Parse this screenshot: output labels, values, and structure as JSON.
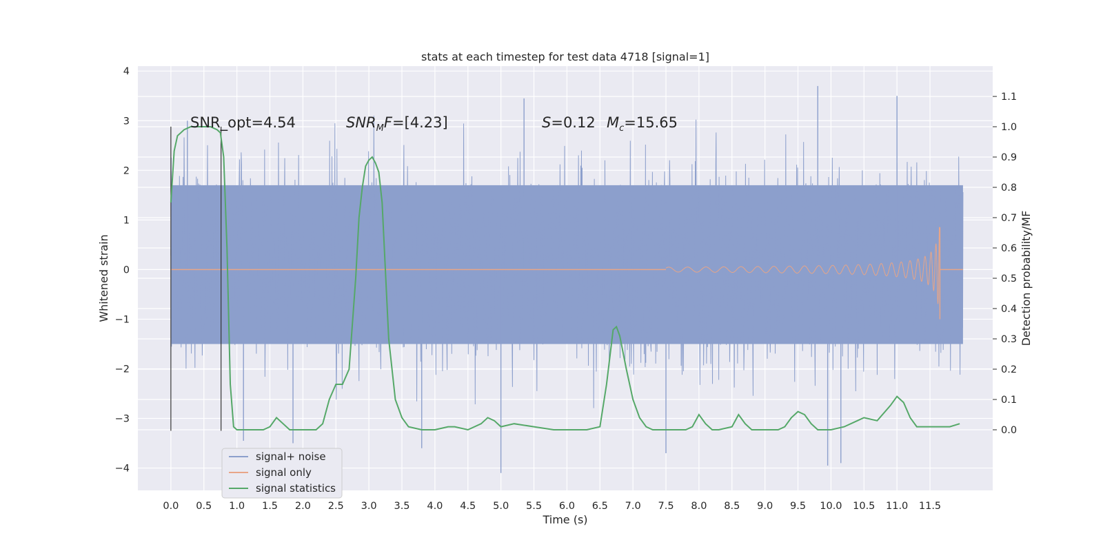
{
  "chart_data": {
    "type": "line",
    "title": "stats at each timestep for test data 4718 [signal=1]",
    "xlabel": "Time (s)",
    "ylabel": "Whitened strain",
    "ylabel_right": "Detection probability/MF",
    "xlim": [
      -0.5,
      12.45
    ],
    "ylim": [
      -4.45,
      4.1
    ],
    "ylim_right": [
      -0.2,
      1.2
    ],
    "x_ticks": [
      0.0,
      0.5,
      1.0,
      1.5,
      2.0,
      2.5,
      3.0,
      3.5,
      4.0,
      4.5,
      5.0,
      5.5,
      6.0,
      6.5,
      7.0,
      7.5,
      8.0,
      8.5,
      9.0,
      9.5,
      10.0,
      10.5,
      11.0,
      11.5
    ],
    "x_tick_labels": [
      "0.0",
      "0.5",
      "1.0",
      "1.5",
      "2.0",
      "2.5",
      "3.0",
      "3.5",
      "4.0",
      "4.5",
      "5.0",
      "5.5",
      "6.0",
      "6.5",
      "7.0",
      "7.5",
      "8.0",
      "8.5",
      "9.0",
      "9.5",
      "10.0",
      "10.5",
      "11.0",
      "11.5"
    ],
    "y_ticks": [
      -4,
      -3,
      -2,
      -1,
      0,
      1,
      2,
      3,
      4
    ],
    "y_tick_labels": [
      "−4",
      "−3",
      "−2",
      "−1",
      "0",
      "1",
      "2",
      "3",
      "4"
    ],
    "y_ticks_right": [
      0.0,
      0.1,
      0.2,
      0.3,
      0.4,
      0.5,
      0.6,
      0.7,
      0.8,
      0.9,
      1.0,
      1.1
    ],
    "y_tick_labels_right": [
      "0.0",
      "0.1",
      "0.2",
      "0.3",
      "0.4",
      "0.5",
      "0.6",
      "0.7",
      "0.8",
      "0.9",
      "1.0",
      "1.1"
    ],
    "grid": true,
    "legend_position": "lower-left",
    "legend": [
      "signal+ noise",
      "signal only",
      "signal statistics"
    ],
    "annotations": {
      "snr_opt": "SNR_opt=4.54",
      "snr_mf": "SNR_MF=[4.23]",
      "s_label": "S=0.12",
      "mc_label": "M_c=15.65"
    },
    "markers_x": [
      0.0,
      0.76
    ],
    "series": [
      {
        "name": "signal+ noise",
        "color": "#8c9fcc",
        "band_x": [
          0,
          12
        ],
        "band_core": [
          -1.5,
          1.7
        ],
        "band_envelope": [
          -2.9,
          3.1
        ],
        "extreme_spikes": [
          {
            "x": 0.25,
            "y": 3.0
          },
          {
            "x": 1.1,
            "y": -3.45
          },
          {
            "x": 1.85,
            "y": -3.5
          },
          {
            "x": 3.8,
            "y": -3.6
          },
          {
            "x": 5.0,
            "y": -4.1
          },
          {
            "x": 5.35,
            "y": 3.45
          },
          {
            "x": 7.5,
            "y": -3.7
          },
          {
            "x": 9.8,
            "y": 3.7
          },
          {
            "x": 9.95,
            "y": -3.95
          },
          {
            "x": 10.15,
            "y": -3.9
          },
          {
            "x": 11.0,
            "y": 3.5
          }
        ]
      },
      {
        "name": "signal only",
        "color": "#dd8452",
        "chirp_start": 7.5,
        "chirp_end": 11.65,
        "chirp_peak": 0.85,
        "chirp_min": -1.0
      },
      {
        "name": "signal statistics",
        "color": "#55a868",
        "axis": "right",
        "x": [
          0.0,
          0.05,
          0.1,
          0.15,
          0.2,
          0.3,
          0.4,
          0.5,
          0.6,
          0.7,
          0.75,
          0.8,
          0.85,
          0.9,
          0.95,
          1.0,
          1.1,
          1.2,
          1.3,
          1.4,
          1.5,
          1.6,
          1.7,
          1.8,
          1.9,
          2.0,
          2.1,
          2.2,
          2.3,
          2.4,
          2.5,
          2.6,
          2.7,
          2.8,
          2.85,
          2.9,
          2.95,
          3.0,
          3.05,
          3.1,
          3.15,
          3.2,
          3.3,
          3.4,
          3.5,
          3.6,
          3.8,
          4.0,
          4.2,
          4.3,
          4.5,
          4.7,
          4.8,
          4.9,
          5.0,
          5.2,
          5.5,
          5.8,
          6.0,
          6.3,
          6.5,
          6.6,
          6.7,
          6.75,
          6.8,
          6.9,
          7.0,
          7.1,
          7.2,
          7.3,
          7.5,
          7.8,
          7.9,
          8.0,
          8.1,
          8.2,
          8.3,
          8.5,
          8.6,
          8.7,
          8.8,
          9.0,
          9.2,
          9.3,
          9.4,
          9.5,
          9.6,
          9.7,
          9.8,
          10.0,
          10.2,
          10.4,
          10.5,
          10.7,
          10.9,
          11.0,
          11.1,
          11.2,
          11.3,
          11.5,
          11.8,
          11.95
        ],
        "y": [
          0.75,
          0.92,
          0.97,
          0.98,
          0.99,
          1.0,
          1.0,
          1.0,
          1.0,
          0.99,
          0.98,
          0.9,
          0.6,
          0.15,
          0.01,
          0.0,
          0.0,
          0.0,
          0.0,
          0.0,
          0.01,
          0.04,
          0.02,
          0.0,
          0.0,
          0.0,
          0.0,
          0.0,
          0.02,
          0.1,
          0.15,
          0.15,
          0.2,
          0.5,
          0.7,
          0.8,
          0.87,
          0.89,
          0.9,
          0.88,
          0.85,
          0.75,
          0.3,
          0.1,
          0.04,
          0.01,
          0.0,
          0.0,
          0.01,
          0.01,
          0.0,
          0.02,
          0.04,
          0.03,
          0.01,
          0.02,
          0.01,
          0.0,
          0.0,
          0.0,
          0.01,
          0.15,
          0.33,
          0.34,
          0.31,
          0.2,
          0.1,
          0.04,
          0.01,
          0.0,
          0.0,
          0.0,
          0.01,
          0.05,
          0.02,
          0.0,
          0.0,
          0.01,
          0.05,
          0.02,
          0.0,
          0.0,
          0.0,
          0.01,
          0.04,
          0.06,
          0.05,
          0.02,
          0.0,
          0.0,
          0.01,
          0.03,
          0.04,
          0.03,
          0.08,
          0.11,
          0.09,
          0.04,
          0.01,
          0.01,
          0.01,
          0.02
        ]
      }
    ]
  }
}
